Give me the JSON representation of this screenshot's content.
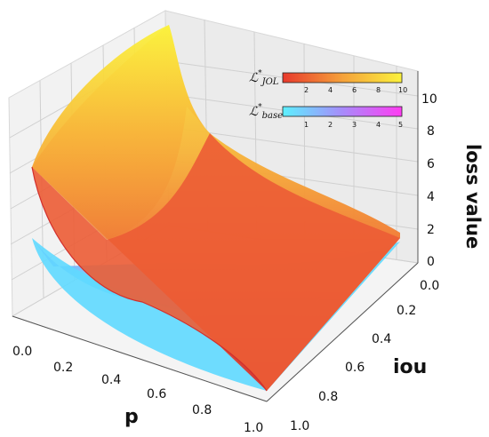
{
  "chart_data": {
    "type": "surface3d",
    "axes": {
      "x": {
        "label": "p",
        "ticks": [
          "0.0",
          "0.2",
          "0.4",
          "0.6",
          "0.8",
          "1.0"
        ],
        "range": [
          0,
          1
        ]
      },
      "y": {
        "label": "iou",
        "ticks": [
          "0.0",
          "0.2",
          "0.4",
          "0.6",
          "0.8",
          "1.0"
        ],
        "range": [
          0,
          1
        ]
      },
      "z": {
        "label": "loss value",
        "ticks": [
          "0",
          "2",
          "4",
          "6",
          "8",
          "10"
        ],
        "range": [
          0,
          11
        ]
      }
    },
    "grid": true,
    "series": [
      {
        "name_main": "ℒ",
        "name_sup": "*",
        "name_sub": "JOL",
        "colormap": "autumn",
        "colormap_colors": [
          "#e8392c",
          "#f5a13a",
          "#fbf23d"
        ],
        "color_range": [
          1,
          10
        ],
        "colorbar_ticks": [
          "2",
          "4",
          "6",
          "8",
          "10"
        ],
        "p": [
          0.05,
          0.1,
          0.2,
          0.4,
          0.6,
          0.8,
          1.0
        ],
        "values_at_iou_0": [
          10.5,
          7.2,
          5.1,
          3.3,
          2.4,
          1.7,
          1.2
        ],
        "values_at_iou_1": [
          4.0,
          3.5,
          2.8,
          1.9,
          1.2,
          0.6,
          0.0
        ]
      },
      {
        "name_main": "ℒ",
        "name_sup": "*",
        "name_sub": "base",
        "colormap": "cool",
        "colormap_colors": [
          "#5cf0ff",
          "#a78bfa",
          "#ff3cf2"
        ],
        "color_range": [
          0,
          5
        ],
        "colorbar_ticks": [
          "1",
          "2",
          "3",
          "4",
          "5"
        ],
        "p": [
          0.05,
          0.1,
          0.2,
          0.4,
          0.6,
          0.8,
          1.0
        ],
        "values_at_iou_0": [
          3.0,
          2.3,
          1.6,
          0.9,
          0.5,
          0.2,
          0.0
        ],
        "values_at_iou_1": [
          3.0,
          2.3,
          1.6,
          0.9,
          0.5,
          0.2,
          0.0
        ]
      }
    ]
  }
}
